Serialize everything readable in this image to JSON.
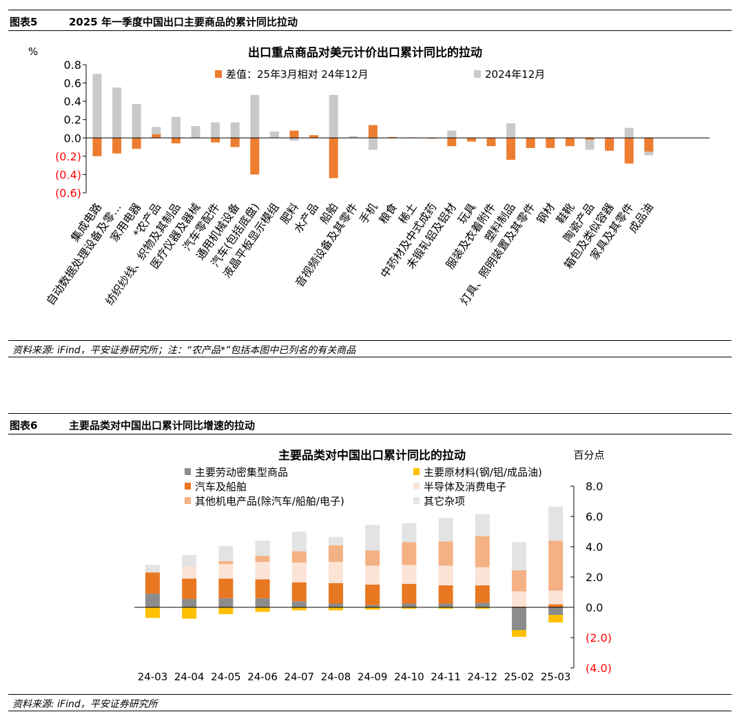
{
  "fig5": {
    "label": "图表5",
    "heading": "2025 年一季度中国出口主要商品的累计同比拉动",
    "source": "资料来源: iFind，平安证券研究所；注：“农产品*”包括本图中已列名的有关商品"
  },
  "fig6": {
    "label": "图表6",
    "heading": "主要品类对中国出口累计同比增速的拉动",
    "source": "资料来源: iFind，平安证券研究所"
  },
  "chart_data": [
    {
      "type": "bar",
      "title": "出口重点商品对美元计价出口累计同比的拉动",
      "ylabel": "%",
      "ylim": [
        -0.6,
        0.8
      ],
      "yticks": [
        "0.8",
        "0.6",
        "0.4",
        "0.2",
        "0.0",
        "(0.2)",
        "(0.4)",
        "(0.6)"
      ],
      "legend_position": "top",
      "categories": [
        "集成电路",
        "自动数据处理设备及零…",
        "家用电器",
        "*农产品",
        "纺织纱线、织物及其制品",
        "医疗仪器及器械",
        "汽车零配件",
        "通用机械设备",
        "汽车(包括底盘)",
        "液晶平板显示模组",
        "肥料",
        "水产品",
        "船舶",
        "音视频设备及其零件",
        "手机",
        "粮食",
        "稀土",
        "中药材及中式成药",
        "未锻轧铝及铝材",
        "玩具",
        "服装及衣着附件",
        "塑料制品",
        "灯具、照明装置及其零件",
        "钢材",
        "鞋靴",
        "陶瓷产品",
        "箱包及类似容器",
        "家具及其零件",
        "成品油"
      ],
      "series": [
        {
          "name": "差值：25年3月相对 24年12月",
          "color": "#ED7D31",
          "values": [
            -0.2,
            -0.17,
            -0.12,
            0.04,
            -0.06,
            0.0,
            -0.05,
            -0.1,
            -0.4,
            0.0,
            0.08,
            0.03,
            -0.44,
            0.0,
            0.14,
            0.01,
            0.005,
            -0.005,
            -0.09,
            -0.04,
            -0.09,
            -0.24,
            -0.11,
            -0.11,
            -0.09,
            -0.02,
            -0.14,
            -0.28,
            -0.15
          ]
        },
        {
          "name": "2024年12月",
          "color": "#C9C9C9",
          "values": [
            0.7,
            0.55,
            0.37,
            0.12,
            0.23,
            0.13,
            0.17,
            0.17,
            0.47,
            0.07,
            -0.03,
            0.02,
            0.47,
            0.02,
            -0.13,
            0.01,
            0.0,
            0.0,
            0.08,
            -0.02,
            -0.02,
            0.16,
            -0.02,
            -0.03,
            -0.06,
            -0.13,
            -0.05,
            0.11,
            -0.19
          ]
        }
      ]
    },
    {
      "type": "bar",
      "stacked": true,
      "title": "主要品类对中国出口累计同比的拉动",
      "ylabel": "百分点",
      "ylim": [
        -4,
        8
      ],
      "yticks": [
        "8.0",
        "6.0",
        "4.0",
        "2.0",
        "0.0",
        "(2.0)",
        "(4.0)"
      ],
      "legend_position": "top-left",
      "categories": [
        "24-03",
        "24-04",
        "24-05",
        "24-06",
        "24-07",
        "24-08",
        "24-09",
        "24-10",
        "24-11",
        "24-12",
        "25-02",
        "25-03"
      ],
      "series": [
        {
          "name": "主要劳动密集型商品",
          "color": "#8C8C8C",
          "values": [
            0.9,
            0.55,
            0.6,
            0.6,
            0.4,
            0.25,
            0.15,
            0.25,
            0.25,
            0.3,
            -1.5,
            -0.5
          ]
        },
        {
          "name": "主要原材料(钢/铝/成品油)",
          "color": "#FFC000",
          "values": [
            -0.7,
            -0.75,
            -0.45,
            -0.3,
            -0.2,
            -0.2,
            -0.15,
            -0.1,
            -0.1,
            -0.1,
            -0.45,
            -0.5
          ]
        },
        {
          "name": "汽车及船舶",
          "color": "#E87722",
          "values": [
            1.4,
            1.35,
            1.3,
            1.25,
            1.25,
            1.35,
            1.35,
            1.3,
            1.2,
            1.15,
            0.05,
            0.2
          ]
        },
        {
          "name": "半导体及消费电子",
          "color": "#FBE3D6",
          "values": [
            0.0,
            0.8,
            0.95,
            1.15,
            1.3,
            1.4,
            1.25,
            1.25,
            1.3,
            1.2,
            1.0,
            0.9
          ]
        },
        {
          "name": "其他机电产品(除汽车/船舶/电子)",
          "color": "#F4B183",
          "values": [
            0.0,
            0.0,
            0.2,
            0.4,
            0.75,
            1.1,
            1.0,
            1.5,
            1.6,
            2.05,
            1.4,
            3.3
          ]
        },
        {
          "name": "其它杂项",
          "color": "#E3E3E3",
          "values": [
            0.5,
            0.75,
            1.0,
            1.0,
            1.3,
            0.55,
            1.7,
            1.25,
            1.55,
            1.45,
            1.85,
            2.25
          ]
        }
      ]
    }
  ]
}
